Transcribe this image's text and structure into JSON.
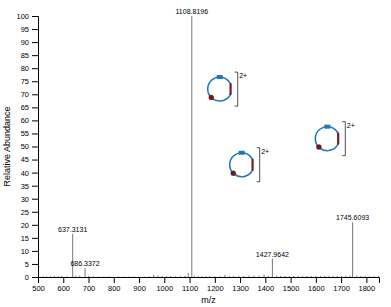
{
  "chart_data": {
    "type": "stem",
    "xlabel": "m/z",
    "ylabel": "Relative Abundance",
    "x": [
      521,
      535,
      550,
      565,
      580,
      595,
      615,
      637.3131,
      650,
      665,
      686.3372,
      700,
      720,
      740,
      760,
      780,
      800,
      820,
      840,
      860,
      880,
      900,
      920,
      940,
      958,
      975,
      992,
      1008,
      1025,
      1045,
      1065,
      1082,
      1095,
      1108.8196,
      1120,
      1135,
      1150,
      1165,
      1180,
      1200,
      1220,
      1240,
      1258,
      1275,
      1295,
      1315,
      1335,
      1355,
      1375,
      1395,
      1412,
      1427.9642,
      1445,
      1460,
      1478,
      1495,
      1512,
      1530,
      1548,
      1565,
      1582,
      1600,
      1618,
      1635,
      1652,
      1668,
      1685,
      1702,
      1718,
      1735,
      1745.6093,
      1762,
      1778,
      1795,
      1812,
      1830,
      1848
    ],
    "values": [
      0.3,
      0.2,
      0.3,
      0.4,
      0.3,
      0.4,
      0.3,
      16.5,
      0.5,
      0.5,
      3.5,
      0.3,
      0.2,
      0.2,
      0.2,
      0.3,
      0.2,
      0.2,
      0.2,
      0.2,
      0.2,
      0.2,
      0.2,
      0.3,
      0.8,
      0.6,
      0.5,
      0.3,
      0.3,
      0.3,
      0.4,
      0.5,
      1.5,
      100.0,
      0.5,
      0.3,
      0.3,
      0.3,
      0.3,
      0.3,
      0.3,
      0.8,
      0.4,
      0.4,
      0.4,
      0.4,
      0.5,
      0.5,
      0.5,
      1.0,
      0.5,
      7.0,
      0.5,
      0.4,
      0.4,
      0.4,
      0.4,
      0.4,
      0.4,
      0.4,
      0.4,
      0.4,
      0.4,
      0.4,
      0.4,
      0.4,
      0.4,
      0.4,
      0.5,
      0.5,
      21.0,
      0.5,
      0.4,
      0.3,
      0.3,
      0.3,
      0.3
    ],
    "color": "#555555",
    "xlim": [
      500,
      1850
    ],
    "ylim": [
      0,
      100
    ],
    "xticks": [
      500,
      600,
      700,
      800,
      900,
      1000,
      1100,
      1200,
      1300,
      1400,
      1500,
      1600,
      1700,
      1800
    ],
    "yticks": [
      0,
      5,
      10,
      15,
      20,
      25,
      30,
      35,
      40,
      45,
      50,
      55,
      60,
      65,
      70,
      75,
      80,
      85,
      90,
      95,
      100
    ],
    "grid": false,
    "annotations": [
      {
        "text": "637.3131",
        "x": 637.3131,
        "y": 16.5
      },
      {
        "text": "686.3372",
        "x": 686.3372,
        "y": 3.5
      },
      {
        "text": "1108.8196",
        "x": 1108.8196,
        "y": 100.0
      },
      {
        "text": "1427.9642",
        "x": 1427.9642,
        "y": 7.0
      },
      {
        "text": "1745.6093",
        "x": 1745.6093,
        "y": 21.0
      },
      {
        "text": "2+",
        "x": 1302.5,
        "y": 72
      },
      {
        "text": "2+",
        "x": 1389.5,
        "y": 43
      },
      {
        "text": "2+",
        "x": 1728.5,
        "y": 53
      }
    ]
  }
}
